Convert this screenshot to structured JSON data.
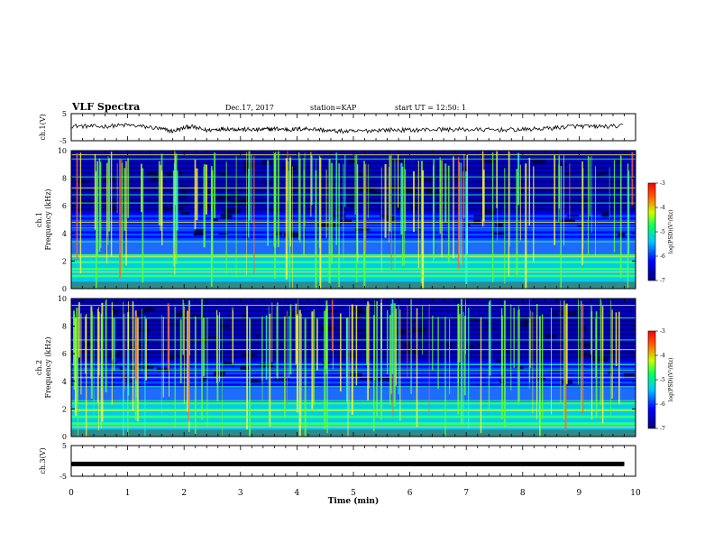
{
  "header": {
    "title": "VLF Spectra",
    "date": "Dec.17, 2017",
    "station": "station=KAP",
    "start": "start UT =  12:50: 1"
  },
  "chart_data": [
    {
      "id": "ch1-voltage",
      "type": "line",
      "ylabel": "ch.1(V)",
      "ylim": [
        -5,
        5
      ],
      "yticks": [
        "-5",
        "5"
      ],
      "xlim": [
        0,
        10
      ],
      "series": [
        {
          "x": [
            0,
            0.5,
            1,
            1.5,
            1.8,
            2.1,
            2.4,
            2.7,
            3.0,
            3.3,
            3.6,
            3.9,
            4.2,
            4.6,
            5.0,
            5.5,
            6.0,
            6.5,
            7.0,
            7.5,
            8.0,
            8.5,
            8.9,
            9.3,
            9.8
          ],
          "values": [
            0.5,
            0.2,
            0.8,
            -0.3,
            -1.5,
            0.3,
            -1.2,
            -0.5,
            -0.8,
            -1.0,
            -0.6,
            -0.9,
            -0.5,
            -1.4,
            -1.6,
            -1.0,
            -1.1,
            -0.8,
            -0.9,
            -1.0,
            -0.9,
            -0.4,
            0.4,
            0.2,
            0.4
          ]
        }
      ]
    },
    {
      "id": "ch1-spectrogram",
      "type": "heatmap",
      "ylabel": "ch.1\nFrequency (kHz)",
      "ylim": [
        0,
        10
      ],
      "yticks": [
        "0",
        "2",
        "4",
        "6",
        "8",
        "10"
      ],
      "xlim": [
        0,
        10
      ],
      "colorbar": {
        "label": "log(PSD)(V²/Hz)",
        "range": [
          -7,
          -3
        ],
        "ticks": [
          "-3",
          "-4",
          "-5",
          "-6",
          "-7"
        ]
      }
    },
    {
      "id": "ch2-spectrogram",
      "type": "heatmap",
      "ylabel": "ch.2\nFrequency (kHz)",
      "ylim": [
        0,
        10
      ],
      "yticks": [
        "0",
        "2",
        "4",
        "6",
        "8",
        "10"
      ],
      "xlim": [
        0,
        10
      ],
      "colorbar": {
        "label": "log(PSD)(V²/Hz)",
        "range": [
          -7,
          -3
        ],
        "ticks": [
          "-3",
          "-4",
          "-5",
          "-6",
          "-7"
        ]
      }
    },
    {
      "id": "ch3-voltage",
      "type": "line",
      "ylabel": "ch.3(V)",
      "ylim": [
        -5,
        5
      ],
      "yticks": [
        "-5",
        "5"
      ],
      "xlim": [
        0,
        10
      ],
      "series": [
        {
          "x": [
            0,
            9.8
          ],
          "values": [
            -1.0,
            -1.0
          ]
        }
      ]
    }
  ],
  "xaxis": {
    "label": "Time (min)",
    "ticks": [
      "0",
      "1",
      "2",
      "3",
      "4",
      "5",
      "6",
      "7",
      "8",
      "9",
      "10"
    ]
  }
}
